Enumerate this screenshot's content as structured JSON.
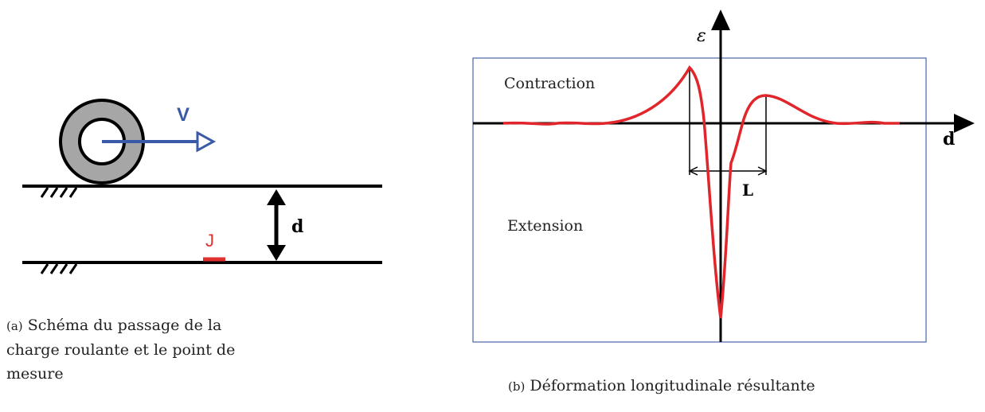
{
  "left": {
    "speed_label": "V",
    "depth_label": "d",
    "gauge_label": "J",
    "caption_tag": "(a)",
    "caption_text": "Schéma du passage de la charge roulante et le point de mesure"
  },
  "right": {
    "y_axis_label": "ε",
    "x_axis_label": "d",
    "upper_region": "Contraction",
    "lower_region": "Extension",
    "width_label": "L",
    "caption_tag": "(b)",
    "caption_text": "Déformation longitudinale résultante"
  }
}
